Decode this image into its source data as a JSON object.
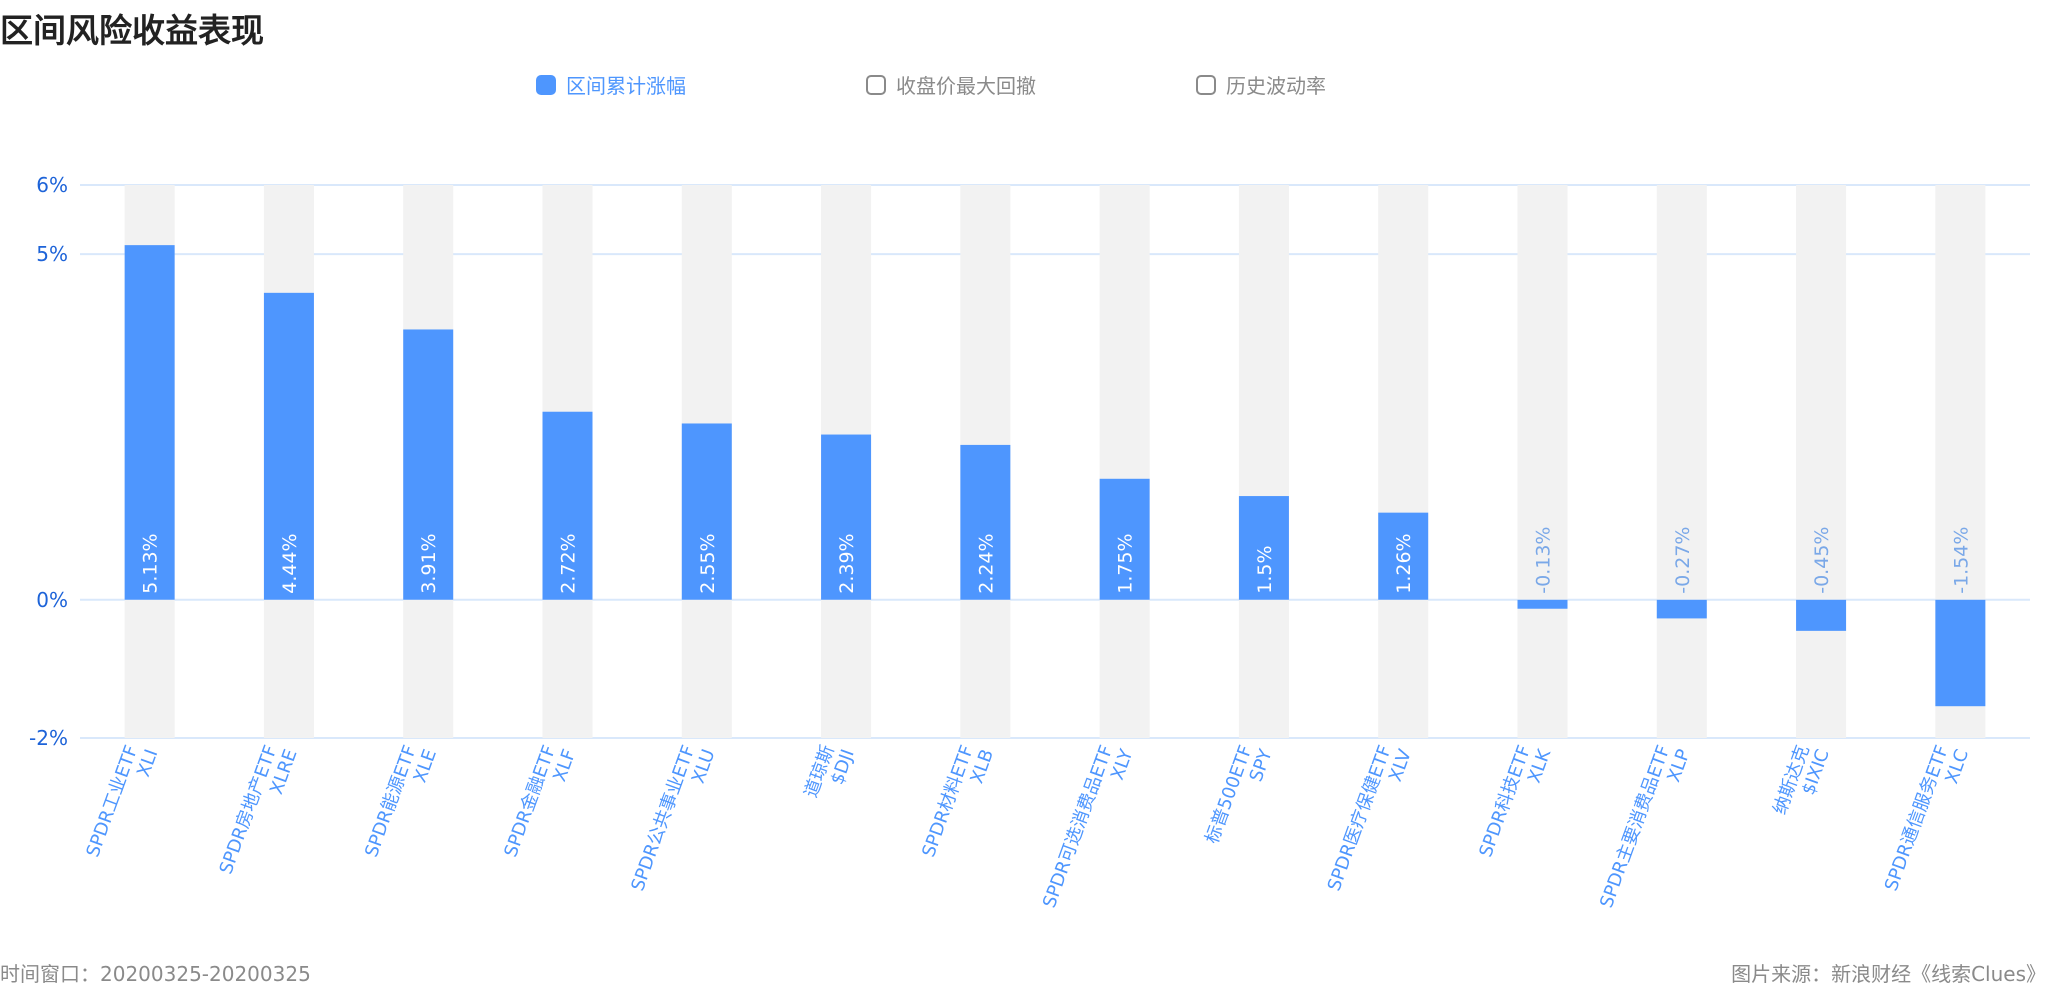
{
  "title": "区间风险收益表现",
  "legend": [
    {
      "label": "区间累计涨幅",
      "active": true
    },
    {
      "label": "收盘价最大回撤",
      "active": false
    },
    {
      "label": "历史波动率",
      "active": false
    }
  ],
  "footer": {
    "window": "时间窗口：20200325-20200325",
    "source": "图片来源：新浪财经《线索Clues》"
  },
  "colors": {
    "bar": "#4e96fe",
    "track": "#f2f2f2",
    "axis_text": "#1d63d8",
    "category_text": "#4e96fe",
    "grid": "#d9e8fb"
  },
  "chart_data": {
    "type": "bar",
    "title": "区间风险收益表现",
    "series": [
      {
        "name": "区间累计涨幅",
        "values": [
          5.13,
          4.44,
          3.91,
          2.72,
          2.55,
          2.39,
          2.24,
          1.75,
          1.5,
          1.26,
          -0.13,
          -0.27,
          -0.45,
          -1.54
        ]
      }
    ],
    "categories": [
      {
        "code": "XLI",
        "name": "SPDR工业ETF"
      },
      {
        "code": "XLRE",
        "name": "SPDR房地产ETF"
      },
      {
        "code": "XLE",
        "name": "SPDR能源ETF"
      },
      {
        "code": "XLF",
        "name": "SPDR金融ETF"
      },
      {
        "code": "XLU",
        "name": "SPDR公共事业ETF"
      },
      {
        "code": "$DJI",
        "name": "道琼斯"
      },
      {
        "code": "XLB",
        "name": "SPDR材料ETF"
      },
      {
        "code": "XLY",
        "name": "SPDR可选消费品ETF"
      },
      {
        "code": "SPY",
        "name": "标普500ETF"
      },
      {
        "code": "XLV",
        "name": "SPDR医疗保健ETF"
      },
      {
        "code": "XLK",
        "name": "SPDR科技ETF"
      },
      {
        "code": "XLP",
        "name": "SPDR主要消费品ETF"
      },
      {
        "code": "$IXIC",
        "name": "纳斯达克"
      },
      {
        "code": "XLC",
        "name": "SPDR通信服务ETF"
      }
    ],
    "data_labels": [
      "5.13%",
      "4.44%",
      "3.91%",
      "2.72%",
      "2.55%",
      "2.39%",
      "2.24%",
      "1.75%",
      "1.5%",
      "1.26%",
      "-0.13%",
      "-0.27%",
      "-0.45%",
      "-1.54%"
    ],
    "yticks": [
      6,
      5,
      0,
      -2
    ],
    "ytick_labels": [
      "6%",
      "5%",
      "0%",
      "-2%"
    ],
    "ylim": [
      -2,
      6
    ],
    "grid": true,
    "legend_position": "top-center"
  }
}
